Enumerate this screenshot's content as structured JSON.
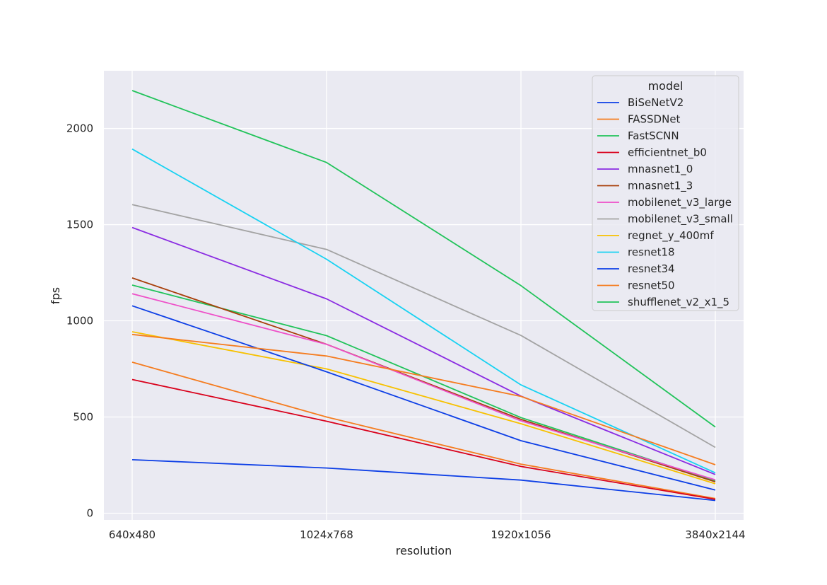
{
  "chart_data": {
    "type": "line",
    "xlabel": "resolution",
    "ylabel": "fps",
    "categories": [
      "640x480",
      "1024x768",
      "1920x1056",
      "3840x2144"
    ],
    "ylim": [
      -35,
      2300
    ],
    "yticks": [
      0,
      500,
      1000,
      1500,
      2000
    ],
    "grid": true,
    "legend": {
      "title": "model",
      "placement": "top-right"
    },
    "series": [
      {
        "name": "BiSeNetV2",
        "color": "#0d3fe6",
        "values": [
          278,
          235,
          172,
          66
        ]
      },
      {
        "name": "FASSDNet",
        "color": "#f57c1f",
        "values": [
          785,
          500,
          255,
          76
        ]
      },
      {
        "name": "FastSCNN",
        "color": "#21c35a",
        "values": [
          1186,
          923,
          497,
          168
        ]
      },
      {
        "name": "efficientnet_b0",
        "color": "#d9001b",
        "values": [
          695,
          478,
          243,
          72
        ]
      },
      {
        "name": "mnasnet1_0",
        "color": "#8a2be2",
        "values": [
          1485,
          1114,
          609,
          201
        ]
      },
      {
        "name": "mnasnet1_3",
        "color": "#a83f0a",
        "values": [
          1223,
          878,
          488,
          163
        ]
      },
      {
        "name": "mobilenet_v3_large",
        "color": "#ee4fc8",
        "values": [
          1141,
          878,
          480,
          173
        ]
      },
      {
        "name": "mobilenet_v3_small",
        "color": "#a3a3a3",
        "values": [
          1604,
          1371,
          924,
          342
        ]
      },
      {
        "name": "regnet_y_400mf",
        "color": "#f7c100",
        "values": [
          943,
          750,
          465,
          153
        ]
      },
      {
        "name": "resnet18",
        "color": "#18d2f2",
        "values": [
          1893,
          1320,
          667,
          210
        ]
      },
      {
        "name": "resnet34",
        "color": "#0d3fe6",
        "values": [
          1078,
          735,
          377,
          120
        ]
      },
      {
        "name": "resnet50",
        "color": "#f57c1f",
        "values": [
          929,
          817,
          607,
          252
        ]
      },
      {
        "name": "shufflenet_v2_x1_5",
        "color": "#21c35a",
        "values": [
          2197,
          1823,
          1183,
          448
        ]
      }
    ]
  }
}
